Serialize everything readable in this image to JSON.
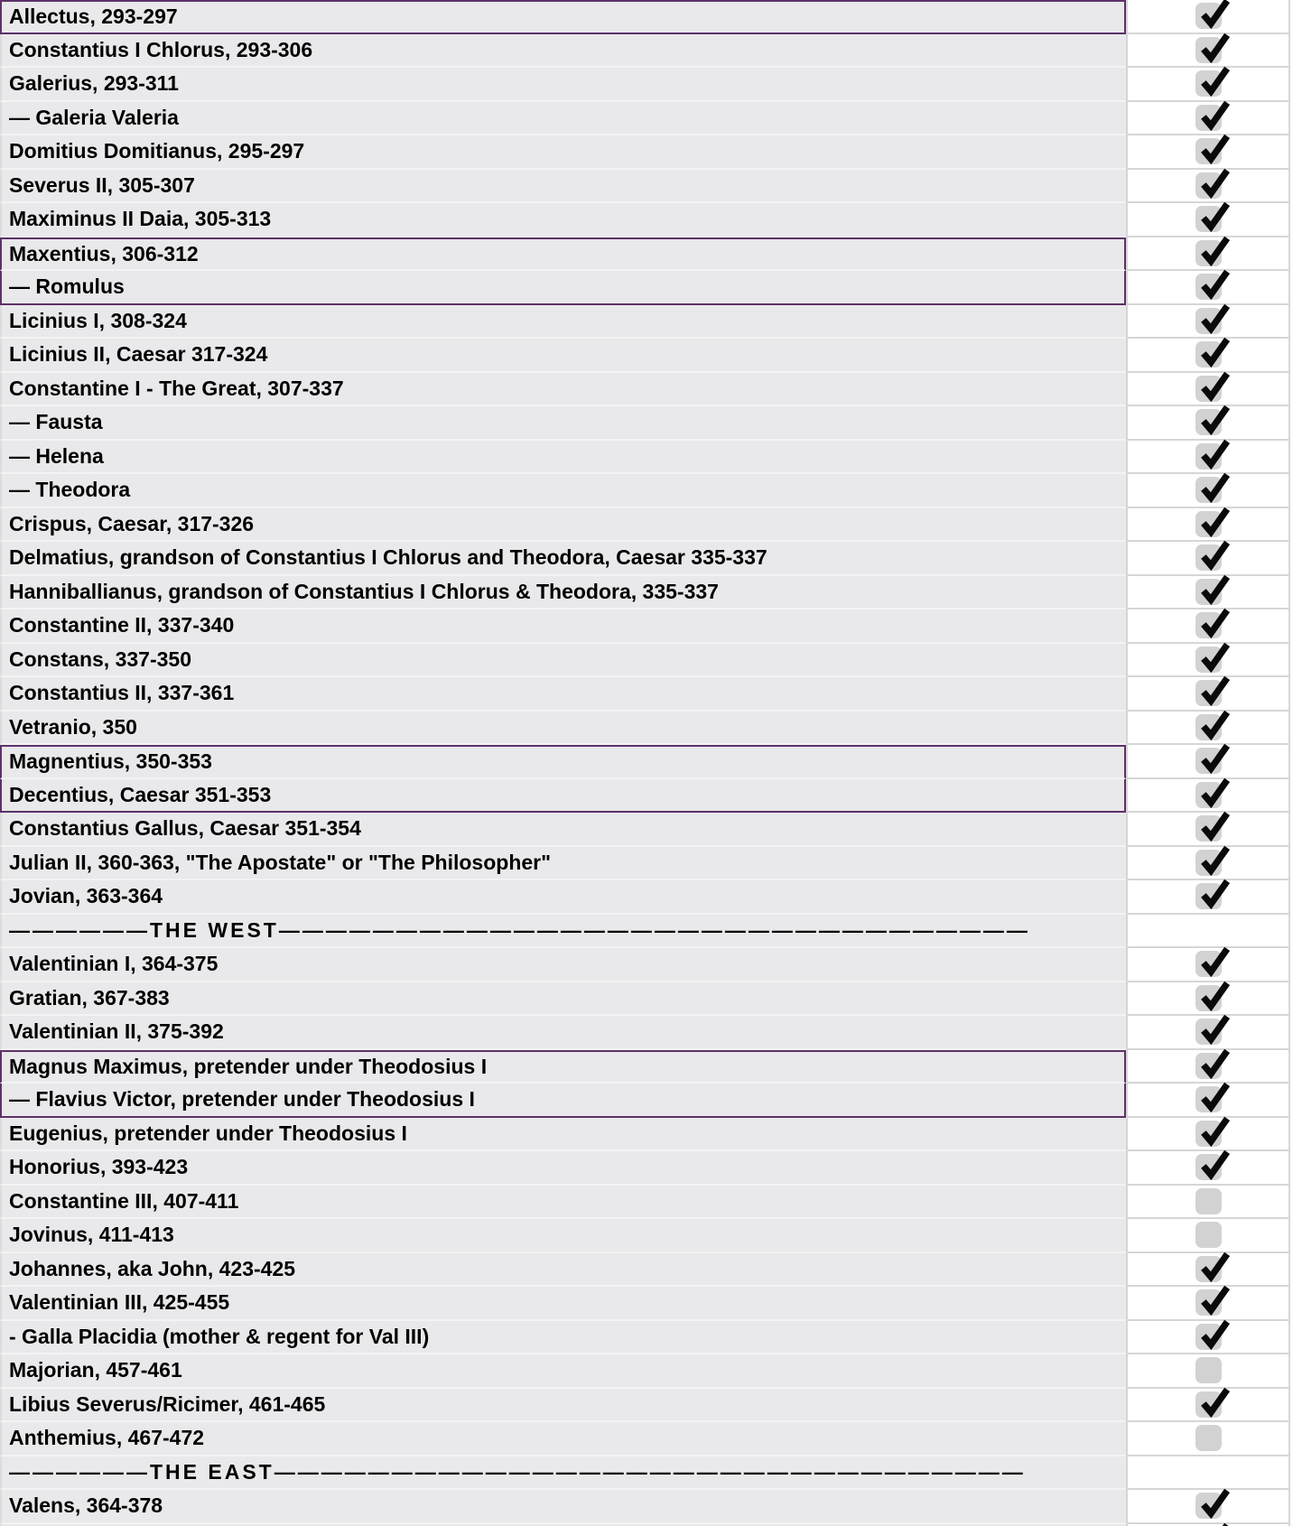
{
  "app": {
    "description": "Checklist table of late Roman emperors with completion checkboxes"
  },
  "colors": {
    "row_background": "#e9e8ea",
    "row_gap_line": "#f3f3f3",
    "grid_line": "#d6d6d6",
    "group_border_purple": "#5d3168",
    "checkbox_fill": "#d2d2d2",
    "checkmark": "#0a0a0a",
    "text": "#000000",
    "checkbox_column_background": "#ffffff"
  },
  "icons": {
    "checkmark": "checkmark-icon"
  },
  "rows": [
    {
      "label": "Allectus, 293-297",
      "check": "checked",
      "group": "solo",
      "separator": false
    },
    {
      "label": "Constantius I Chlorus, 293-306",
      "check": "checked",
      "group": null,
      "separator": false
    },
    {
      "label": "Galerius, 293-311",
      "check": "checked",
      "group": null,
      "separator": false
    },
    {
      "label": "— Galeria Valeria",
      "check": "checked",
      "group": null,
      "separator": false
    },
    {
      "label": "Domitius Domitianus, 295-297",
      "check": "checked",
      "group": null,
      "separator": false
    },
    {
      "label": "Severus II, 305-307",
      "check": "checked",
      "group": null,
      "separator": false
    },
    {
      "label": "Maximinus II Daia, 305-313",
      "check": "checked",
      "group": null,
      "separator": false
    },
    {
      "label": "Maxentius, 306-312",
      "check": "checked",
      "group": "start",
      "separator": false
    },
    {
      "label": "— Romulus",
      "check": "checked",
      "group": "end",
      "separator": false
    },
    {
      "label": "Licinius I, 308-324",
      "check": "checked",
      "group": null,
      "separator": false
    },
    {
      "label": "Licinius II, Caesar 317-324",
      "check": "checked",
      "group": null,
      "separator": false
    },
    {
      "label": "Constantine I - The Great, 307-337",
      "check": "checked",
      "group": null,
      "separator": false
    },
    {
      "label": "— Fausta",
      "check": "checked",
      "group": null,
      "separator": false
    },
    {
      "label": "— Helena",
      "check": "checked",
      "group": null,
      "separator": false
    },
    {
      "label": "— Theodora",
      "check": "checked",
      "group": null,
      "separator": false
    },
    {
      "label": "Crispus, Caesar, 317-326",
      "check": "checked",
      "group": null,
      "separator": false
    },
    {
      "label": "Delmatius, grandson of Constantius I Chlorus and Theodora, Caesar 335-337",
      "check": "checked",
      "group": null,
      "separator": false
    },
    {
      "label": "Hanniballianus, grandson of Constantius I Chlorus & Theodora, 335-337",
      "check": "checked",
      "group": null,
      "separator": false
    },
    {
      "label": "Constantine II, 337-340",
      "check": "checked",
      "group": null,
      "separator": false
    },
    {
      "label": "Constans, 337-350",
      "check": "checked",
      "group": null,
      "separator": false
    },
    {
      "label": "Constantius II, 337-361",
      "check": "checked",
      "group": null,
      "separator": false
    },
    {
      "label": "Vetranio, 350",
      "check": "checked",
      "group": null,
      "separator": false
    },
    {
      "label": "Magnentius, 350-353",
      "check": "checked",
      "group": "start",
      "separator": false
    },
    {
      "label": "Decentius, Caesar 351-353",
      "check": "checked",
      "group": "end",
      "separator": false
    },
    {
      "label": "Constantius Gallus, Caesar 351-354",
      "check": "checked",
      "group": null,
      "separator": false
    },
    {
      "label": "Julian II, 360-363, \"The Apostate\" or \"The Philosopher\"",
      "check": "checked",
      "group": null,
      "separator": false
    },
    {
      "label": "Jovian, 363-364",
      "check": "checked",
      "group": null,
      "separator": false
    },
    {
      "label": "——————THE WEST————————————————————————————————",
      "check": "none",
      "group": null,
      "separator": true
    },
    {
      "label": "Valentinian I, 364-375",
      "check": "checked",
      "group": null,
      "separator": false
    },
    {
      "label": "Gratian, 367-383",
      "check": "checked",
      "group": null,
      "separator": false
    },
    {
      "label": "Valentinian II, 375-392",
      "check": "checked",
      "group": null,
      "separator": false
    },
    {
      "label": "Magnus Maximus, pretender under Theodosius I",
      "check": "checked",
      "group": "start",
      "separator": false
    },
    {
      "label": "— Flavius Victor, pretender under Theodosius I",
      "check": "checked",
      "group": "end",
      "separator": false
    },
    {
      "label": "Eugenius, pretender under Theodosius I",
      "check": "checked",
      "group": null,
      "separator": false
    },
    {
      "label": "Honorius, 393-423",
      "check": "checked",
      "group": null,
      "separator": false
    },
    {
      "label": "Constantine III, 407-411",
      "check": "unchecked",
      "group": null,
      "separator": false
    },
    {
      "label": "Jovinus, 411-413",
      "check": "unchecked",
      "group": null,
      "separator": false
    },
    {
      "label": "Johannes, aka John, 423-425",
      "check": "checked",
      "group": null,
      "separator": false
    },
    {
      "label": "Valentinian III, 425-455",
      "check": "checked",
      "group": null,
      "separator": false
    },
    {
      "label": "- Galla Placidia (mother & regent for Val III)",
      "check": "checked",
      "group": null,
      "separator": false
    },
    {
      "label": "Majorian, 457-461",
      "check": "unchecked",
      "group": null,
      "separator": false
    },
    {
      "label": "Libius Severus/Ricimer, 461-465",
      "check": "checked",
      "group": null,
      "separator": false
    },
    {
      "label": "Anthemius, 467-472",
      "check": "unchecked",
      "group": null,
      "separator": false
    },
    {
      "label": "——————THE EAST————————————————————————————————",
      "check": "none",
      "group": null,
      "separator": true
    },
    {
      "label": "Valens, 364-378",
      "check": "checked",
      "group": null,
      "separator": false
    },
    {
      "label": "",
      "check": "checked",
      "group": null,
      "separator": false
    }
  ]
}
